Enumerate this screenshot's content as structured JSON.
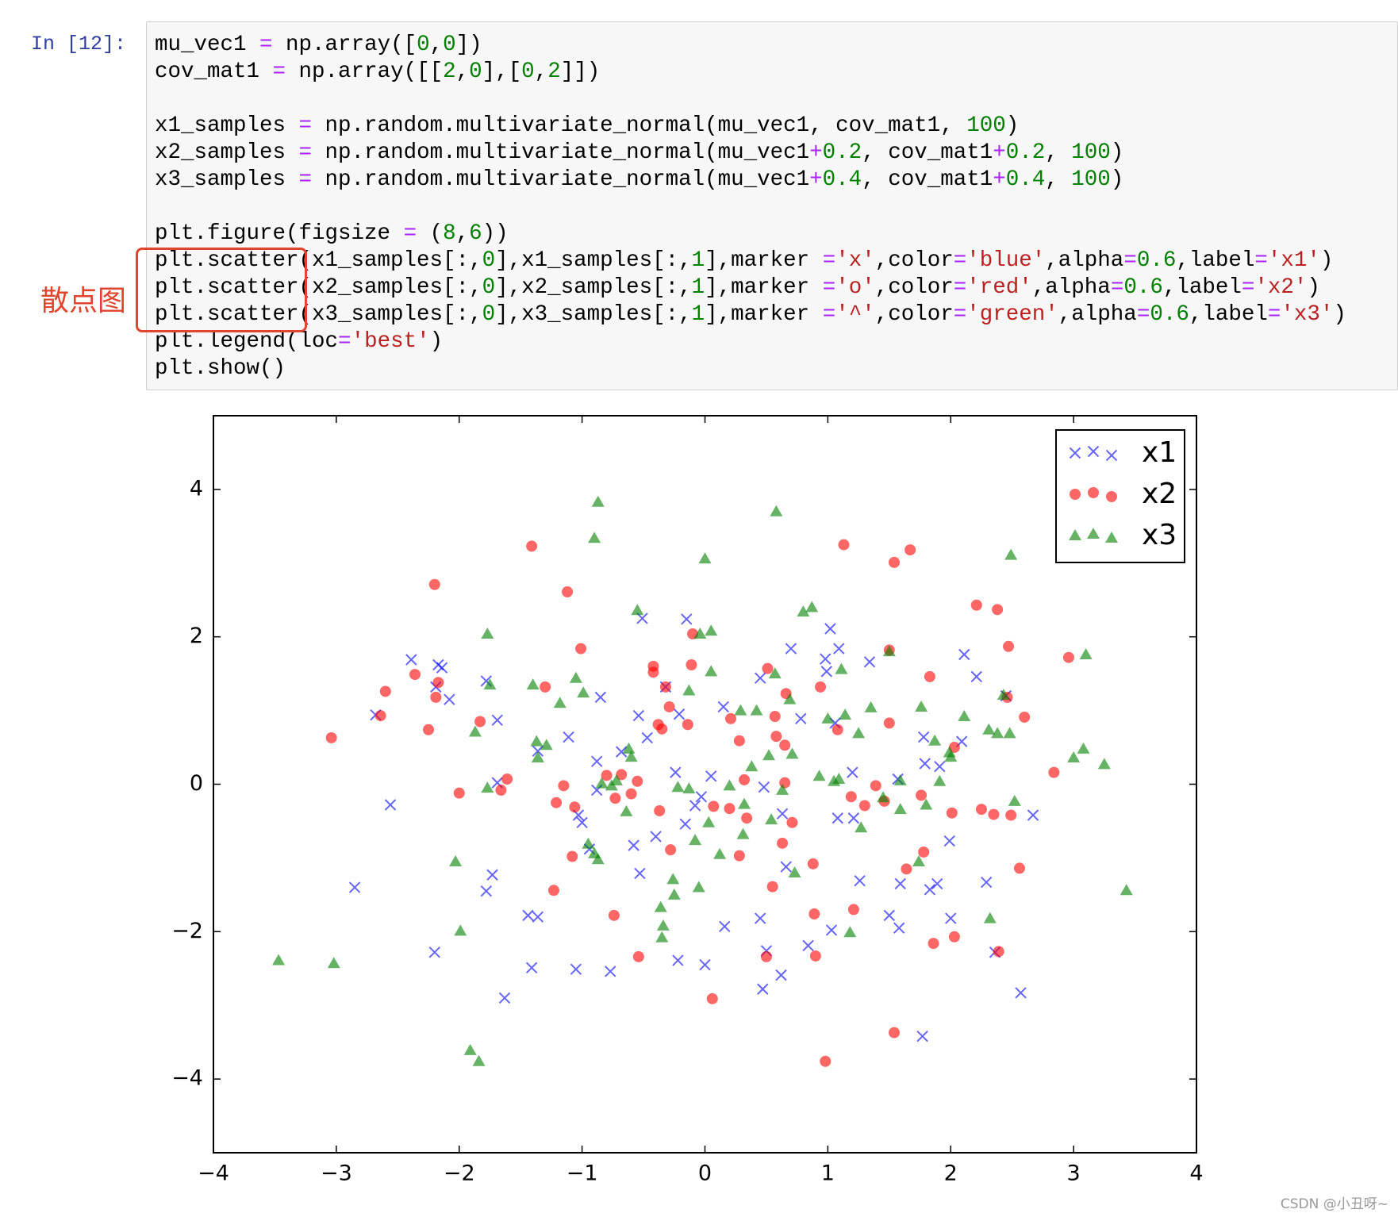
{
  "prompt": "In [12]:",
  "annotation": "散点图",
  "code": {
    "blocks": [
      [
        "mu_vec1 = np.array([0,0])",
        "cov_mat1 = np.array([[2,0],[0,2]])"
      ],
      [
        "x1_samples = np.random.multivariate_normal(mu_vec1, cov_mat1, 100)",
        "x2_samples = np.random.multivariate_normal(mu_vec1+0.2, cov_mat1+0.2, 100)",
        "x3_samples = np.random.multivariate_normal(mu_vec1+0.4, cov_mat1+0.4, 100)"
      ],
      [
        "plt.figure(figsize = (8,6))",
        "plt.scatter(x1_samples[:,0],x1_samples[:,1],marker ='x',color='blue',alpha=0.6,label='x1')",
        "plt.scatter(x2_samples[:,0],x2_samples[:,1],marker ='o',color='red',alpha=0.6,label='x2')",
        "plt.scatter(x3_samples[:,0],x3_samples[:,1],marker ='^',color='green',alpha=0.6,label='x3')",
        "plt.legend(loc='best')",
        "plt.show()"
      ]
    ]
  },
  "watermark": "CSDN @小丑呀~",
  "chart_data": {
    "type": "scatter",
    "xlim": [
      -4,
      4
    ],
    "ylim": [
      -5,
      5
    ],
    "xticks": [
      {
        "value": -4,
        "label": "−4"
      },
      {
        "value": -3,
        "label": "−3"
      },
      {
        "value": -2,
        "label": "−2"
      },
      {
        "value": -1,
        "label": "−1"
      },
      0,
      1,
      2,
      3,
      4
    ],
    "yticks": [
      {
        "value": -4,
        "label": "−4"
      },
      {
        "value": -2,
        "label": "−2"
      },
      0,
      2,
      4
    ],
    "legend": "upper right",
    "series": [
      {
        "name": "x1",
        "color": "#0000ff",
        "marker": "x",
        "alpha": 0.6,
        "x": [
          -2.39,
          -2.17,
          -2.14,
          -2.08,
          -2.68,
          -2.19,
          -2.56,
          -2.85,
          -1.78,
          -1.69,
          -1.69,
          -1.73,
          -1.78,
          -1.44,
          -1.36,
          -2.2,
          -1.41,
          -1.63,
          -1.05,
          -0.77,
          -1.11,
          -1.36,
          -1.03,
          -1.0,
          -0.94,
          -0.88,
          -0.88,
          -0.85,
          -0.68,
          -0.58,
          -0.53,
          -0.54,
          -0.51,
          -0.47,
          -0.4,
          -0.22,
          0.0,
          -0.32,
          -0.21,
          -0.24,
          -0.16,
          -0.08,
          -0.15,
          0.05,
          -0.03,
          0.15,
          0.16,
          0.45,
          0.48,
          0.45,
          0.5,
          0.47,
          0.62,
          0.63,
          0.66,
          0.7,
          0.78,
          0.84,
          1.02,
          0.98,
          0.99,
          1.09,
          1.08,
          1.2,
          1.21,
          1.26,
          1.03,
          1.34,
          1.5,
          1.58,
          1.59,
          1.57,
          1.78,
          1.79,
          1.83,
          1.89,
          1.91,
          1.77,
          1.99,
          2.0,
          2.09,
          2.11,
          2.21,
          2.29,
          2.36,
          2.57,
          2.67,
          2.45,
          1.06
        ],
        "values": [
          1.69,
          1.62,
          1.58,
          1.15,
          0.94,
          1.32,
          -0.28,
          -1.4,
          1.4,
          0.87,
          0.02,
          -1.23,
          -1.45,
          -1.78,
          -1.8,
          -2.28,
          -2.49,
          -2.9,
          -2.51,
          -2.54,
          0.64,
          0.45,
          -0.42,
          -0.52,
          -0.88,
          0.31,
          -0.08,
          1.18,
          0.44,
          -0.83,
          -1.21,
          0.93,
          2.25,
          0.63,
          -0.71,
          -2.39,
          -2.45,
          1.32,
          0.95,
          0.16,
          -0.54,
          -0.29,
          2.24,
          0.11,
          -0.17,
          1.05,
          -1.93,
          1.44,
          -0.04,
          -1.82,
          -2.26,
          -2.78,
          -2.59,
          -0.4,
          -1.12,
          1.84,
          0.89,
          -2.19,
          2.11,
          1.7,
          1.53,
          1.84,
          -0.46,
          0.16,
          -0.46,
          -1.31,
          -1.98,
          1.66,
          -1.78,
          -1.95,
          -1.35,
          0.07,
          0.64,
          0.28,
          -1.43,
          -1.35,
          0.24,
          -3.42,
          -0.77,
          -1.82,
          0.58,
          1.76,
          1.46,
          -1.33,
          -2.28,
          -2.83,
          -0.42,
          1.2,
          0.83
        ]
      },
      {
        "name": "x2",
        "color": "#ff0000",
        "marker": "o",
        "alpha": 0.6,
        "x": [
          -3.04,
          -2.64,
          -2.6,
          -2.36,
          -2.2,
          -2.25,
          -2.19,
          -2.17,
          -2.0,
          -1.83,
          -1.66,
          -1.61,
          -1.41,
          -1.3,
          -1.23,
          -1.21,
          -1.15,
          -1.12,
          -1.08,
          -1.06,
          -1.01,
          -0.8,
          -0.74,
          -0.73,
          -0.68,
          -0.6,
          -0.55,
          -0.54,
          -0.42,
          -0.42,
          -0.38,
          -0.37,
          -0.35,
          -0.32,
          -0.29,
          -0.28,
          -0.14,
          -0.11,
          -0.1,
          0.06,
          0.07,
          0.2,
          0.21,
          0.28,
          0.28,
          0.32,
          0.34,
          0.5,
          0.51,
          0.55,
          0.57,
          0.58,
          0.63,
          0.65,
          0.65,
          0.66,
          0.71,
          0.88,
          0.89,
          0.9,
          0.94,
          0.98,
          1.08,
          1.13,
          1.19,
          1.21,
          1.3,
          1.39,
          1.46,
          1.5,
          1.5,
          1.54,
          1.54,
          1.64,
          1.67,
          1.76,
          1.78,
          1.83,
          1.86,
          2.01,
          2.03,
          2.03,
          2.21,
          2.25,
          2.35,
          2.38,
          2.39,
          2.46,
          2.47,
          2.49,
          2.56,
          2.6,
          2.84,
          2.96
        ],
        "values": [
          0.63,
          0.93,
          1.26,
          1.49,
          2.71,
          0.74,
          1.18,
          1.38,
          -0.12,
          0.85,
          -0.08,
          0.07,
          3.23,
          1.32,
          -1.44,
          -0.25,
          -0.02,
          2.61,
          -0.98,
          -0.31,
          1.84,
          0.12,
          -1.78,
          -0.19,
          0.13,
          -0.13,
          0.04,
          -2.34,
          1.6,
          1.52,
          0.81,
          -0.36,
          0.75,
          1.32,
          1.05,
          -0.89,
          0.81,
          1.62,
          2.04,
          -2.91,
          -0.3,
          -0.33,
          0.89,
          -0.97,
          0.59,
          0.06,
          -0.46,
          -2.34,
          1.57,
          -1.39,
          0.92,
          0.65,
          -0.8,
          0.53,
          0.02,
          1.23,
          -0.52,
          -1.08,
          -1.76,
          -2.33,
          1.32,
          -3.76,
          0.74,
          3.25,
          -0.17,
          -1.7,
          -0.29,
          -0.02,
          -0.23,
          1.82,
          0.83,
          3.01,
          -3.37,
          -1.15,
          3.18,
          -0.15,
          -0.92,
          1.46,
          -2.16,
          -0.39,
          0.5,
          -2.07,
          2.43,
          -0.34,
          -0.41,
          2.37,
          -2.27,
          1.18,
          1.87,
          -0.42,
          -1.14,
          0.91,
          0.16,
          1.72
        ]
      },
      {
        "name": "x3",
        "color": "#008000",
        "marker": "^",
        "alpha": 0.6,
        "x": [
          -3.47,
          -3.02,
          -2.03,
          -1.99,
          -1.91,
          -1.84,
          -1.87,
          -1.77,
          -1.75,
          -1.77,
          -1.4,
          -1.37,
          -1.36,
          -1.29,
          -1.18,
          -1.05,
          -0.99,
          -0.95,
          -0.9,
          -0.87,
          -0.9,
          -0.87,
          -0.84,
          -0.76,
          -0.72,
          -0.64,
          -0.62,
          -0.6,
          -0.55,
          -0.36,
          -0.34,
          -0.35,
          -0.25,
          -0.26,
          -0.22,
          -0.13,
          -0.13,
          -0.08,
          -0.05,
          -0.04,
          0.05,
          0.0,
          0.05,
          0.03,
          0.12,
          0.2,
          0.29,
          0.31,
          0.32,
          0.38,
          0.42,
          0.52,
          0.54,
          0.57,
          0.58,
          0.63,
          0.69,
          0.71,
          0.73,
          0.8,
          0.87,
          0.93,
          1.0,
          1.05,
          1.09,
          1.11,
          1.14,
          1.18,
          1.25,
          1.27,
          1.35,
          1.45,
          1.5,
          1.59,
          1.59,
          1.74,
          1.76,
          1.8,
          1.87,
          1.91,
          1.99,
          2.0,
          2.11,
          2.31,
          2.32,
          2.38,
          2.43,
          2.48,
          2.49,
          2.52,
          3.0,
          3.08,
          3.1,
          3.25,
          3.43
        ],
        "values": [
          -2.39,
          -2.43,
          -1.05,
          -1.99,
          -3.61,
          -3.76,
          0.71,
          2.04,
          1.35,
          -0.05,
          1.35,
          0.58,
          0.36,
          0.53,
          1.1,
          1.44,
          1.24,
          -0.81,
          -0.94,
          -1.02,
          3.34,
          3.83,
          0.01,
          -0.02,
          0.05,
          -0.37,
          0.48,
          0.37,
          2.36,
          -1.67,
          -1.92,
          -2.08,
          -1.5,
          -1.29,
          -0.04,
          1.27,
          -0.06,
          -0.76,
          -1.4,
          2.04,
          2.08,
          3.06,
          1.53,
          -0.52,
          -0.95,
          -0.02,
          1.0,
          -0.68,
          -0.27,
          0.24,
          1.0,
          0.39,
          -0.48,
          1.5,
          3.7,
          -0.08,
          1.15,
          0.41,
          -1.2,
          2.34,
          2.4,
          0.11,
          0.89,
          0.04,
          0.07,
          1.56,
          0.94,
          -2.01,
          0.69,
          -0.59,
          1.04,
          -0.18,
          1.8,
          0.05,
          -0.34,
          -1.05,
          1.05,
          -0.28,
          0.59,
          0.04,
          0.43,
          0.37,
          0.92,
          0.74,
          -1.82,
          0.69,
          1.21,
          0.69,
          3.11,
          -0.23,
          0.36,
          0.48,
          1.76,
          0.27,
          -1.44
        ]
      }
    ]
  }
}
